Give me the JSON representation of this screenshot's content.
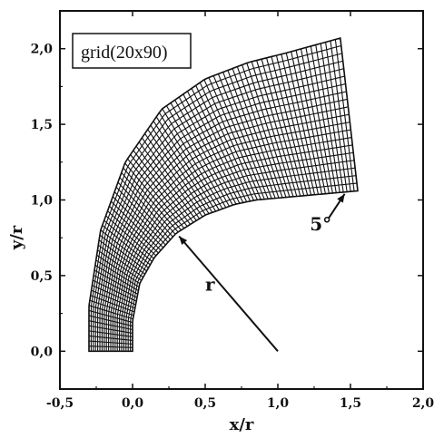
{
  "chart_data": {
    "type": "mesh",
    "xlabel": "x/r",
    "ylabel": "y/r",
    "xlim": [
      -0.5,
      2.0
    ],
    "ylim": [
      -0.25,
      2.25
    ],
    "x_ticks": [
      "-0,5",
      "0,0",
      "0,5",
      "1,0",
      "1,5",
      "2,0"
    ],
    "x_tick_values": [
      -0.5,
      0.0,
      0.5,
      1.0,
      1.5,
      2.0
    ],
    "y_ticks": [
      "0,0",
      "0,5",
      "1,0",
      "1,5",
      "2,0"
    ],
    "y_tick_values": [
      0.0,
      0.5,
      1.0,
      1.5,
      2.0
    ],
    "legend": "grid(20x90)",
    "grid_lines_radial": 20,
    "grid_lines_circumferential": 90,
    "mesh": {
      "inner_boundary": [
        {
          "x": 0.0,
          "y": 0.0
        },
        {
          "x": 0.0,
          "y": 0.2
        },
        {
          "x": 0.05,
          "y": 0.45
        },
        {
          "x": 0.15,
          "y": 0.62
        },
        {
          "x": 0.3,
          "y": 0.78
        },
        {
          "x": 0.5,
          "y": 0.9
        },
        {
          "x": 0.7,
          "y": 0.97
        },
        {
          "x": 0.85,
          "y": 1.0
        },
        {
          "x": 1.55,
          "y": 1.06
        }
      ],
      "outer_boundary": [
        {
          "x": -0.3,
          "y": 0.0
        },
        {
          "x": -0.3,
          "y": 0.3
        },
        {
          "x": -0.22,
          "y": 0.8
        },
        {
          "x": -0.05,
          "y": 1.25
        },
        {
          "x": 0.2,
          "y": 1.6
        },
        {
          "x": 0.5,
          "y": 1.8
        },
        {
          "x": 0.8,
          "y": 1.91
        },
        {
          "x": 1.05,
          "y": 1.97
        },
        {
          "x": 1.43,
          "y": 2.07
        }
      ]
    },
    "annotations": [
      {
        "text": "r",
        "arrow_from": {
          "x": 1.0,
          "y": 0.0
        },
        "arrow_to": {
          "x": 0.32,
          "y": 0.76
        },
        "label_at": {
          "x": 0.5,
          "y": 0.4
        }
      },
      {
        "text": "5°",
        "arrow_from": {
          "x": 1.35,
          "y": 0.88
        },
        "arrow_to": {
          "x": 1.46,
          "y": 1.04
        },
        "label_at": {
          "x": 1.22,
          "y": 0.8
        }
      }
    ]
  }
}
